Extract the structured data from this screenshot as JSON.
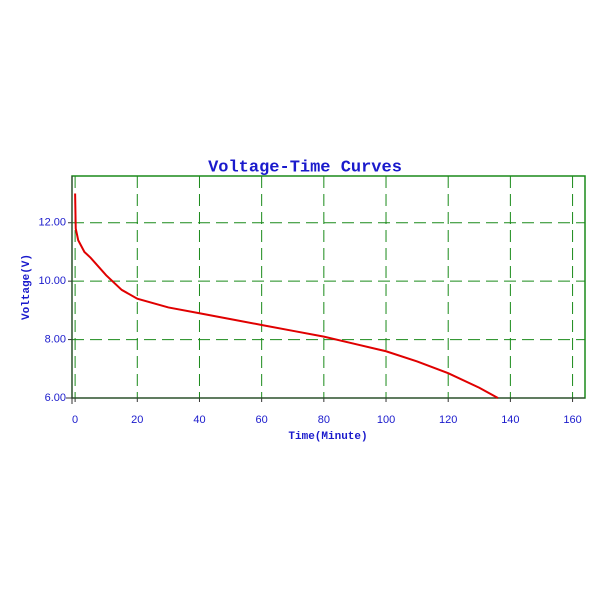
{
  "chart_data": {
    "type": "line",
    "title": "Voltage-Time Curves",
    "x_label": "Time(Minute)",
    "y_label": "Voltage(V)",
    "x": [
      0,
      0.2,
      1,
      3,
      5,
      10,
      15,
      20,
      30,
      40,
      50,
      60,
      70,
      80,
      90,
      100,
      110,
      120,
      130,
      136
    ],
    "series": [
      {
        "color": "#e00000",
        "values": [
          13.0,
          11.8,
          11.4,
          11.0,
          10.8,
          10.2,
          9.7,
          9.4,
          9.1,
          8.9,
          8.7,
          8.5,
          8.3,
          8.1,
          7.85,
          7.6,
          7.25,
          6.85,
          6.35,
          6.0
        ]
      }
    ],
    "xlim": [
      -1,
      164
    ],
    "ylim": [
      6,
      13.6
    ],
    "xticks": [
      0,
      20,
      40,
      60,
      80,
      100,
      120,
      140,
      160
    ],
    "yticks": [
      {
        "value": 6,
        "label": "6.00"
      },
      {
        "value": 8,
        "label": "8.00"
      },
      {
        "value": 10,
        "label": "10.00"
      },
      {
        "value": 12,
        "label": "12.00"
      }
    ],
    "grid": true,
    "grid_color": "#1a8a1a"
  }
}
